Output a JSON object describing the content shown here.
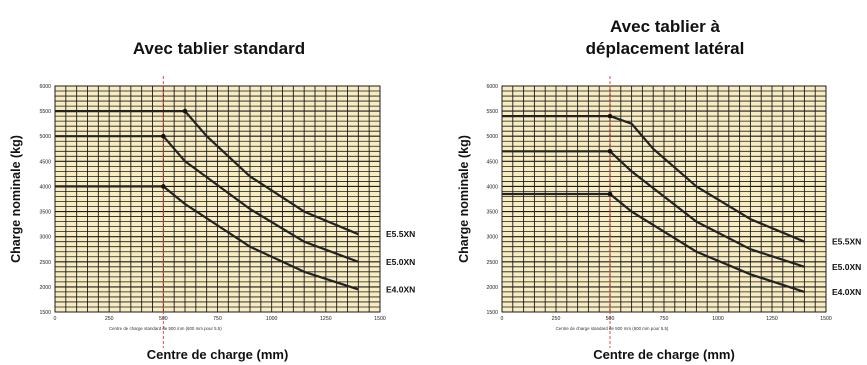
{
  "chart_data": [
    {
      "type": "line",
      "title": "Avec tablier standard",
      "xlabel": "Centre de charge (mm)",
      "ylabel": "Charge nominale (kg)",
      "note": "Centre de charge standard de 500 mm (600 mm pour 5.5)",
      "xlim": [
        0,
        1500
      ],
      "ylim": [
        1500,
        6000
      ],
      "xticks": [
        "0",
        "250",
        "500",
        "750",
        "1000",
        "1250",
        "1500"
      ],
      "yticks": [
        "1500",
        "2000",
        "2500",
        "3000",
        "3500",
        "4000",
        "4500",
        "5000",
        "5500",
        "6000"
      ],
      "grid": true,
      "reference_x": 500,
      "series": [
        {
          "name": "E5.5XN",
          "x": [
            0,
            600,
            700,
            900,
            1150,
            1400
          ],
          "y": [
            5500,
            5500,
            5000,
            4200,
            3500,
            3050
          ]
        },
        {
          "name": "E5.0XN",
          "x": [
            0,
            500,
            600,
            900,
            1150,
            1400
          ],
          "y": [
            5000,
            5000,
            4500,
            3550,
            2900,
            2500
          ]
        },
        {
          "name": "E4.0XN",
          "x": [
            0,
            500,
            600,
            900,
            1150,
            1400
          ],
          "y": [
            4000,
            4000,
            3650,
            2800,
            2300,
            1950
          ]
        }
      ]
    },
    {
      "type": "line",
      "title": "Avec tablier à déplacement latéral",
      "xlabel": "Centre de charge (mm)",
      "ylabel": "Charge nominale (kg)",
      "note": "Centre de charge standard de 500 mm (600 mm pour 5.5)",
      "xlim": [
        0,
        1500
      ],
      "ylim": [
        1500,
        6000
      ],
      "xticks": [
        "0",
        "250",
        "500",
        "750",
        "1000",
        "1250",
        "1500"
      ],
      "yticks": [
        "1500",
        "2000",
        "2500",
        "3000",
        "3500",
        "4000",
        "4500",
        "5000",
        "5500",
        "6000"
      ],
      "grid": true,
      "reference_x": 500,
      "series": [
        {
          "name": "E5.5XN",
          "x": [
            0,
            500,
            600,
            700,
            900,
            1150,
            1400
          ],
          "y": [
            5400,
            5400,
            5250,
            4750,
            4000,
            3350,
            2900
          ]
        },
        {
          "name": "E5.0XN",
          "x": [
            0,
            500,
            600,
            900,
            1150,
            1400
          ],
          "y": [
            4700,
            4700,
            4300,
            3300,
            2750,
            2400
          ]
        },
        {
          "name": "E4.0XN",
          "x": [
            0,
            500,
            600,
            900,
            1150,
            1400
          ],
          "y": [
            3850,
            3850,
            3500,
            2700,
            2250,
            1900
          ]
        }
      ]
    }
  ],
  "style": {
    "plot_background": "#f8ecc2",
    "grid_color": "#1a1a1a",
    "line_color": "#222222",
    "reference_line_color": "#e03a3a"
  }
}
